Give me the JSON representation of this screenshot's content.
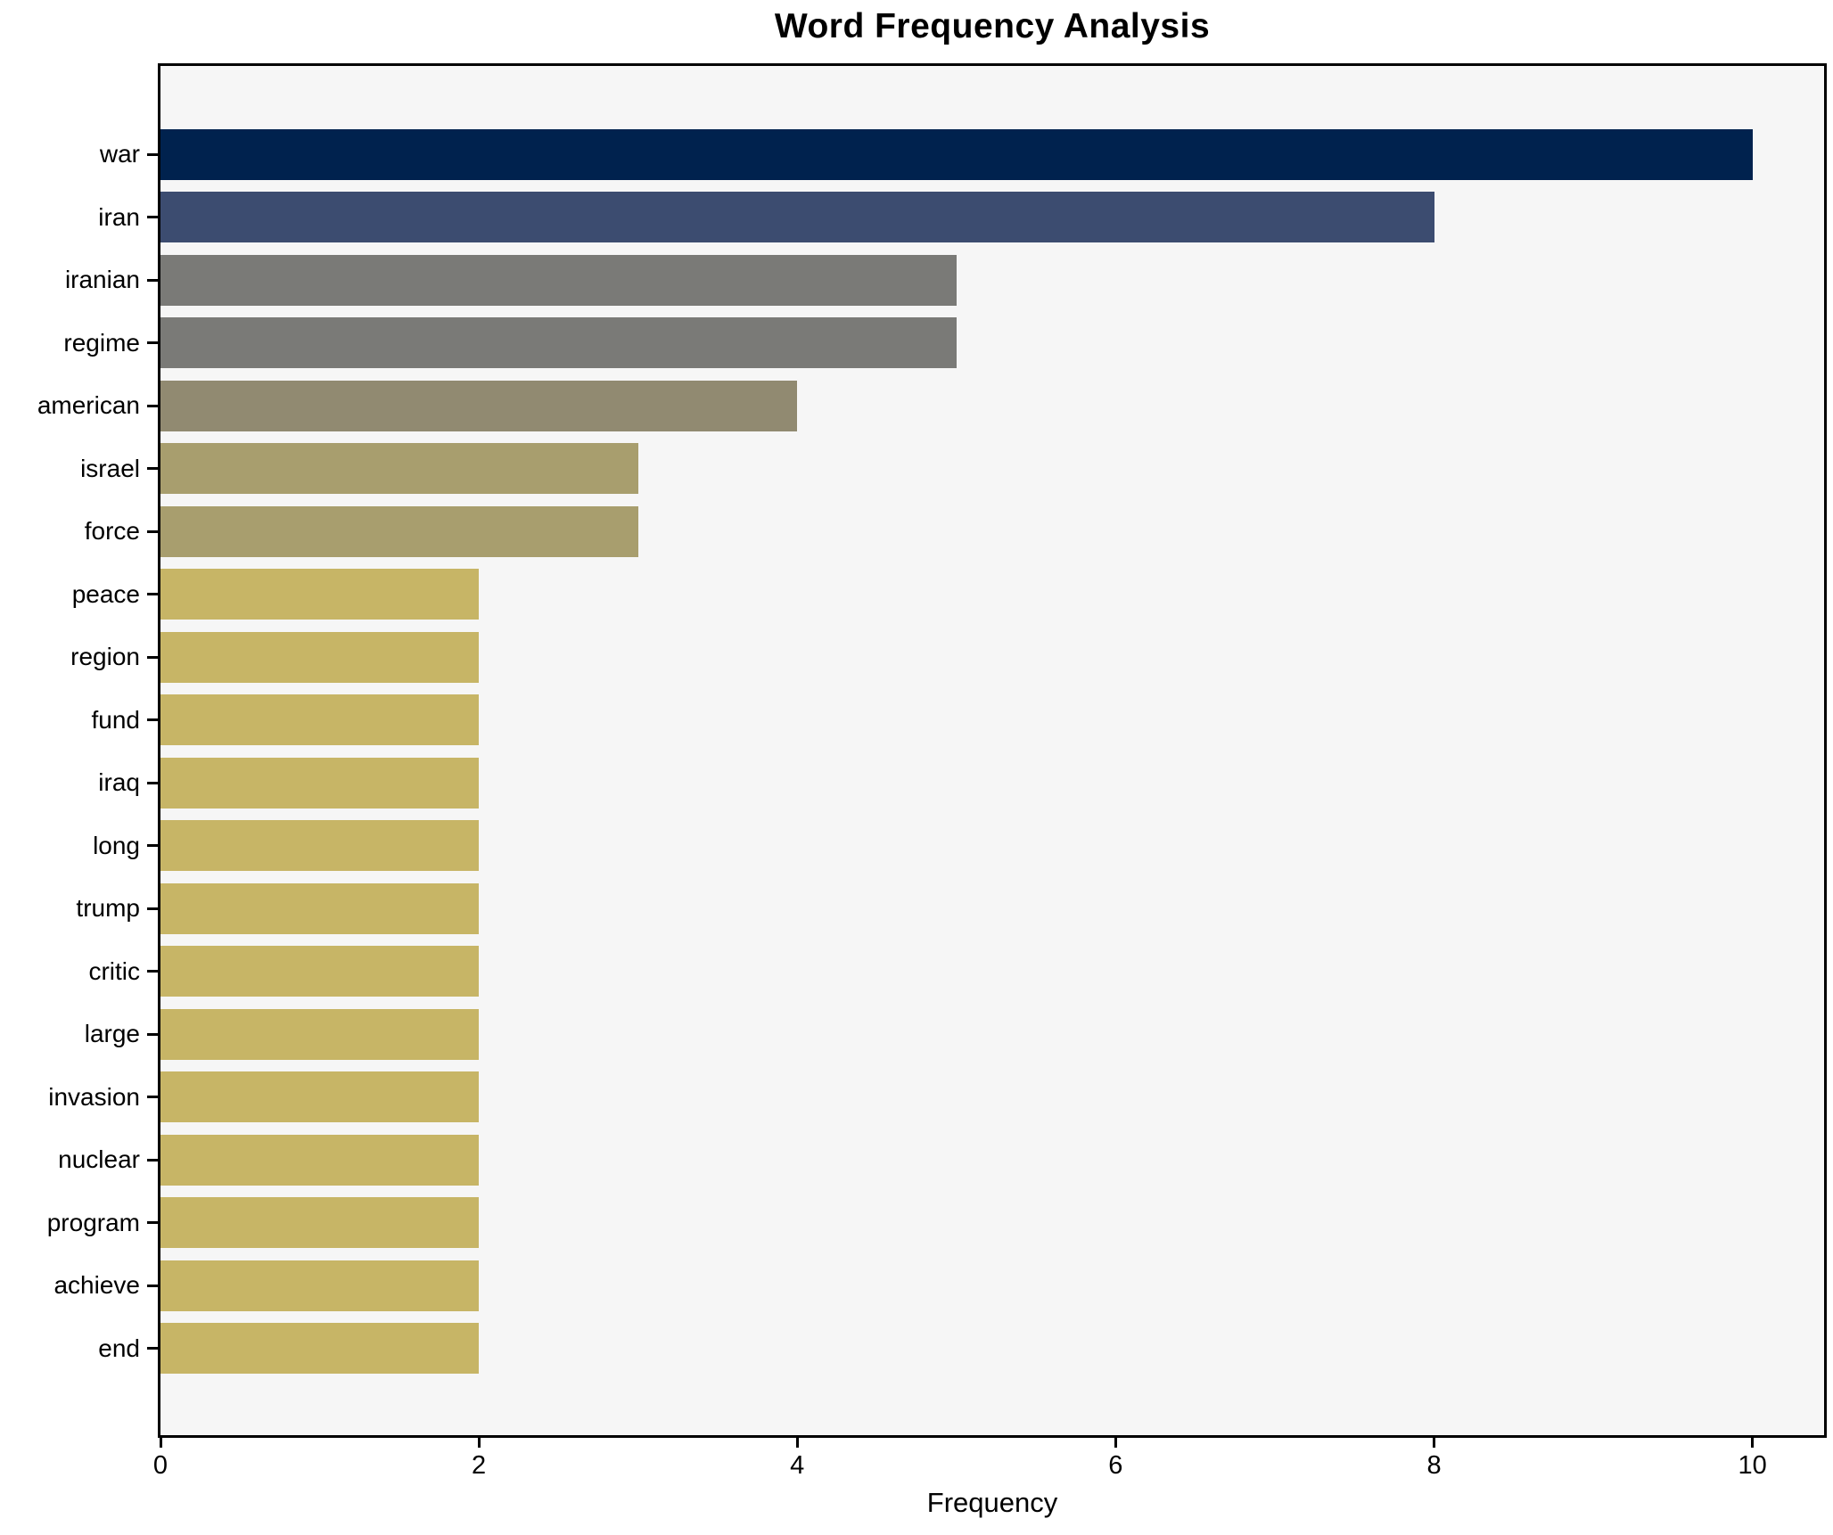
{
  "title": "Word Frequency Analysis",
  "chart_data": {
    "type": "bar",
    "orientation": "horizontal",
    "title": "Word Frequency Analysis",
    "xlabel": "Frequency",
    "ylabel": "",
    "xlim": [
      0,
      10.45
    ],
    "x_ticks": [
      0,
      2,
      4,
      6,
      8,
      10
    ],
    "grid": false,
    "legend": "none",
    "plot_background": "#f6f6f6",
    "categories": [
      "war",
      "iran",
      "iranian",
      "regime",
      "american",
      "israel",
      "force",
      "peace",
      "region",
      "fund",
      "iraq",
      "long",
      "trump",
      "critic",
      "large",
      "invasion",
      "nuclear",
      "program",
      "achieve",
      "end"
    ],
    "values": [
      10,
      8,
      5,
      5,
      4,
      3,
      3,
      2,
      2,
      2,
      2,
      2,
      2,
      2,
      2,
      2,
      2,
      2,
      2,
      2
    ],
    "bar_colors": [
      "#00224e",
      "#3c4c70",
      "#7a7a77",
      "#7a7a77",
      "#918a71",
      "#a89e6e",
      "#a89e6e",
      "#c7b566",
      "#c7b566",
      "#c7b566",
      "#c7b566",
      "#c7b566",
      "#c7b566",
      "#c7b566",
      "#c7b566",
      "#c7b566",
      "#c7b566",
      "#c7b566",
      "#c7b566",
      "#c7b566"
    ]
  }
}
